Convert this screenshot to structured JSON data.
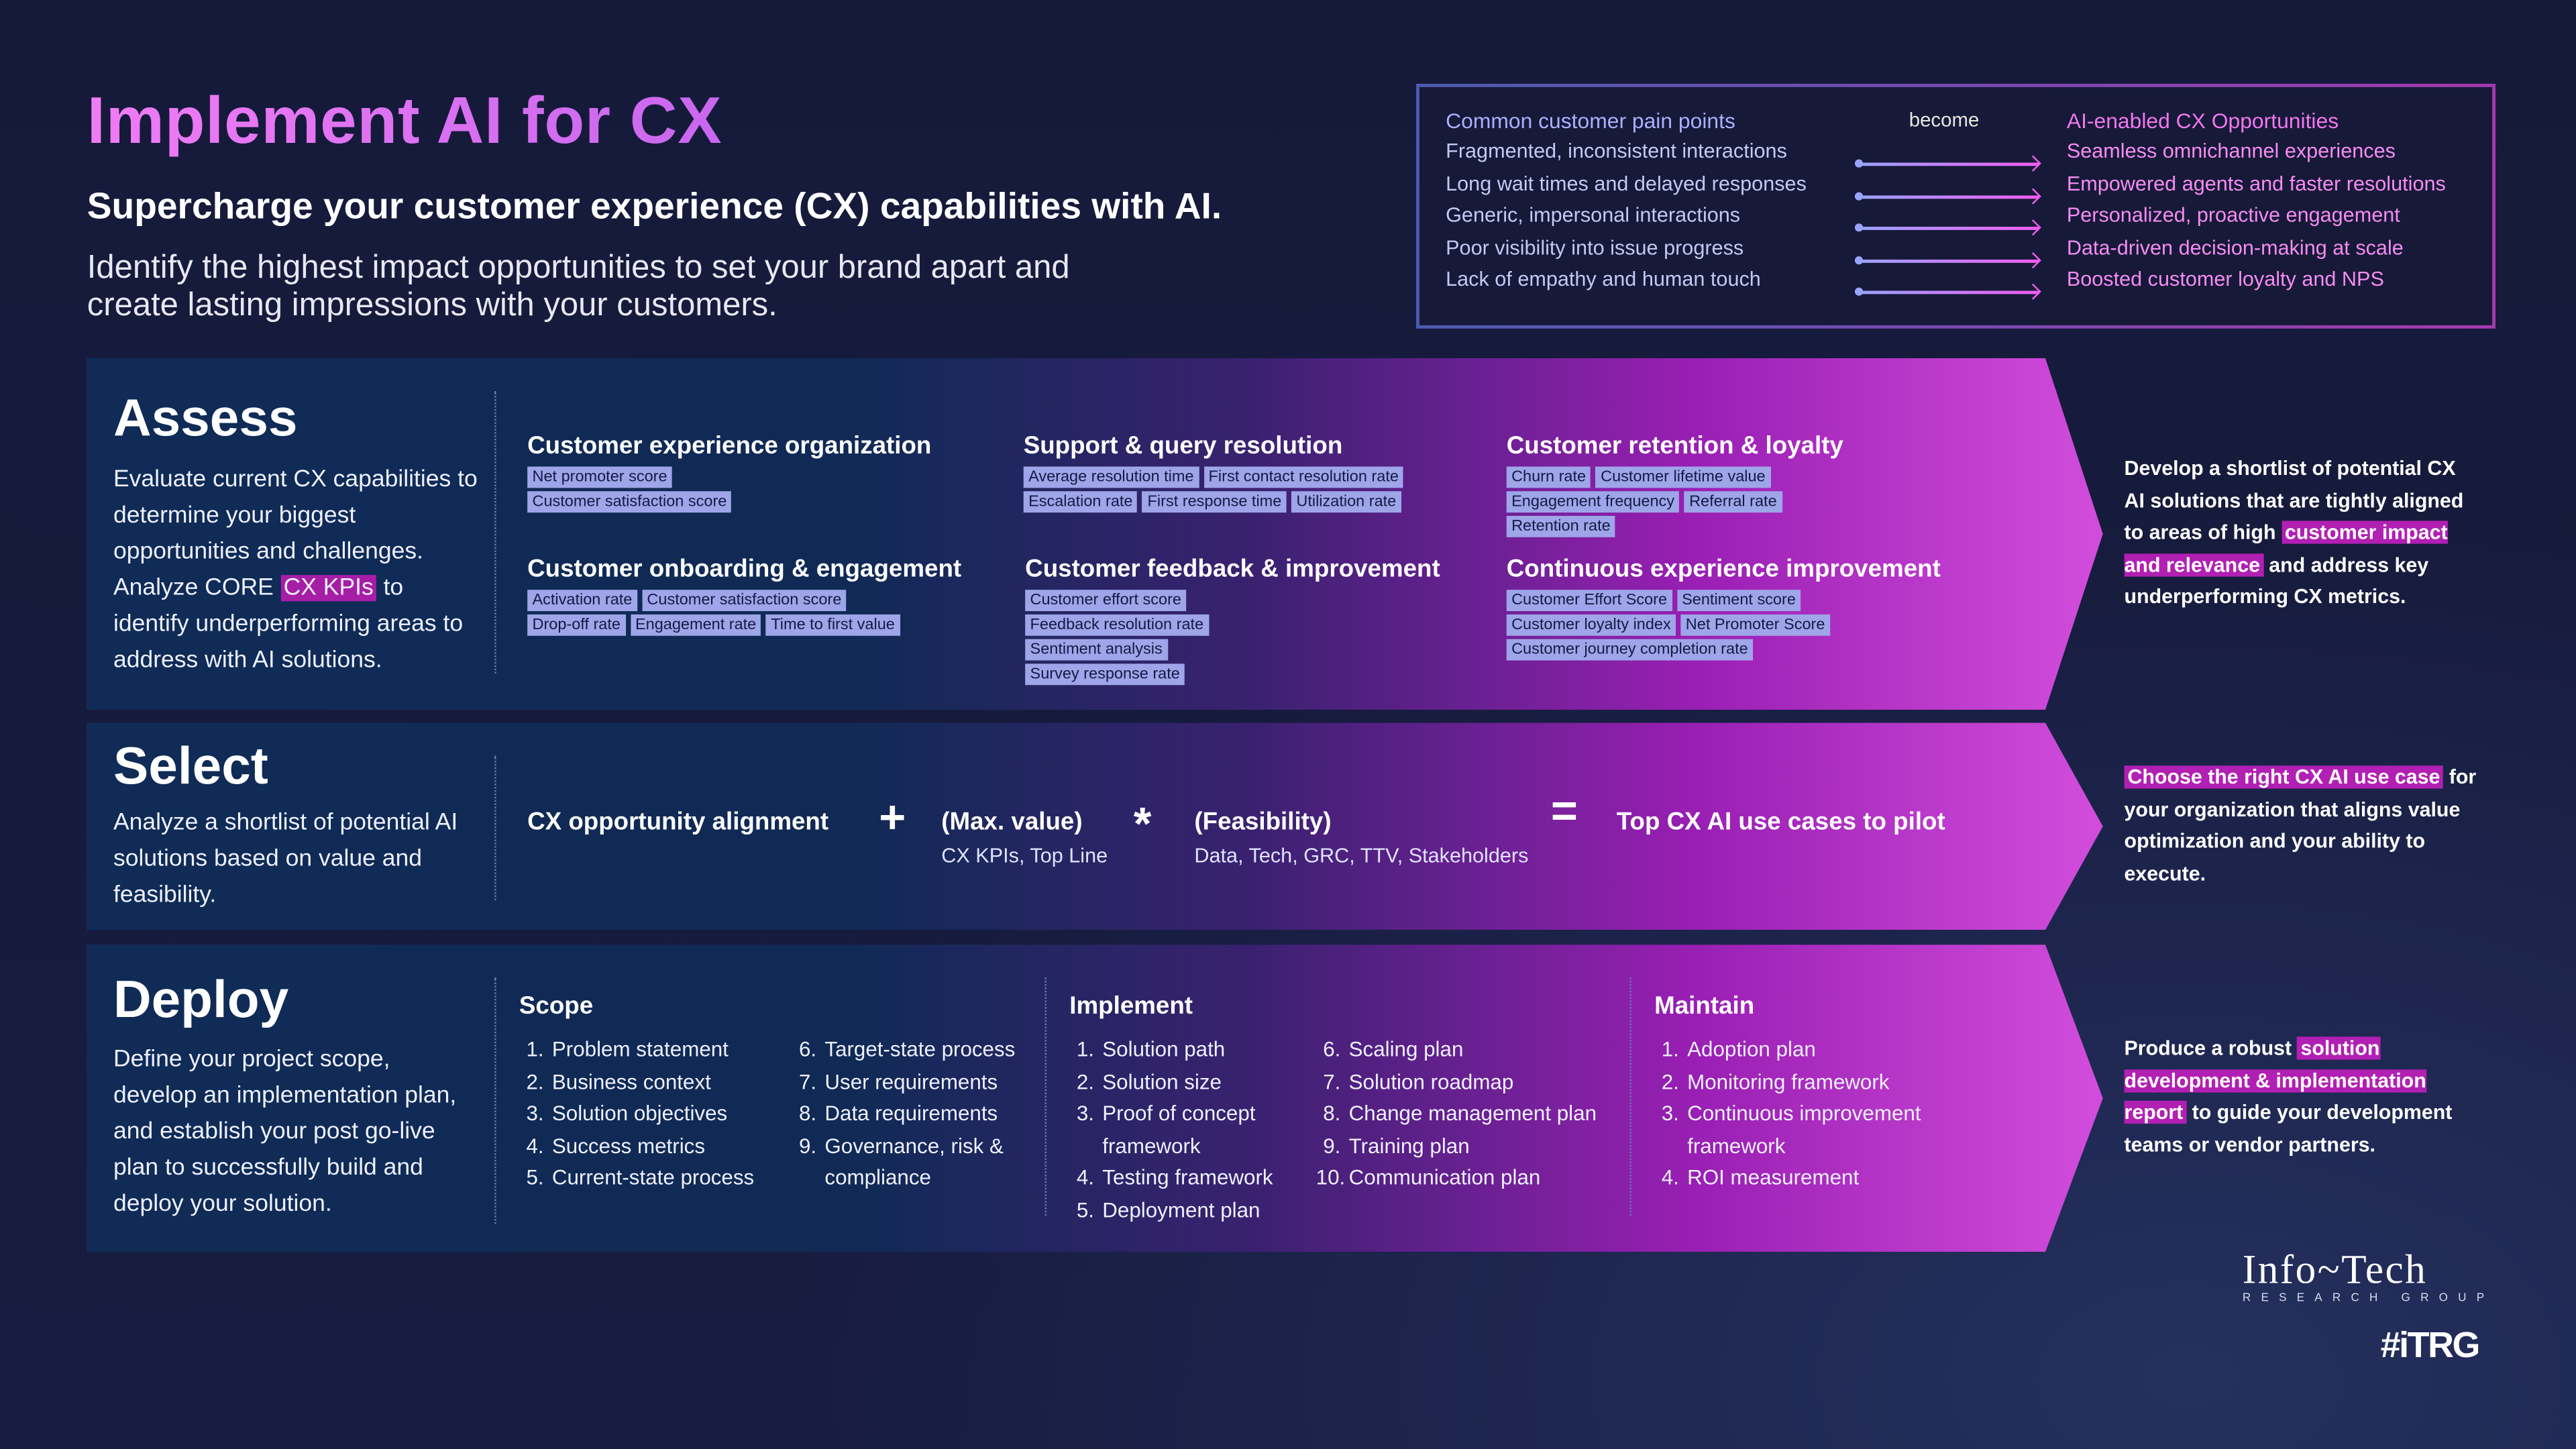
{
  "header": {
    "title": "Implement AI for CX",
    "subtitle": "Supercharge your customer experience (CX) capabilities with AI.",
    "intro": "Identify the highest impact opportunities to set your brand apart and create lasting impressions with your customers."
  },
  "pain_points": {
    "left_header": "Common customer pain points",
    "middle": "become",
    "right_header": "AI-enabled CX Opportunities",
    "rows": [
      {
        "from": "Fragmented, inconsistent interactions",
        "to": "Seamless omnichannel experiences"
      },
      {
        "from": "Long wait times and delayed responses",
        "to": "Empowered agents and faster resolutions"
      },
      {
        "from": "Generic, impersonal interactions",
        "to": "Personalized, proactive engagement"
      },
      {
        "from": "Poor visibility into issue progress",
        "to": "Data-driven decision-making at scale"
      },
      {
        "from": "Lack of empathy and human touch",
        "to": "Boosted customer loyalty and NPS"
      }
    ]
  },
  "assess": {
    "title": "Assess",
    "desc_a": "Evaluate current CX capabilities to determine your biggest opportunities and challenges. Analyze CORE ",
    "desc_hl": "CX KPIs",
    "desc_b": " to identify underperforming areas to address with AI solutions.",
    "groups": [
      {
        "title": "Customer experience organization",
        "chips": [
          "Net promoter score",
          "Customer satisfaction score"
        ]
      },
      {
        "title": "Support & query resolution",
        "chips": [
          "Average resolution time",
          "First contact resolution rate",
          "Escalation rate",
          "First response time",
          "Utilization rate"
        ]
      },
      {
        "title": "Customer retention & loyalty",
        "chips": [
          "Churn rate",
          "Customer lifetime value",
          "Engagement frequency",
          "Referral rate",
          "Retention rate"
        ]
      },
      {
        "title": "Customer onboarding & engagement",
        "chips": [
          "Activation rate",
          "Customer satisfaction score",
          "Drop-off rate",
          "Engagement rate",
          "Time to first value"
        ]
      },
      {
        "title": "Customer feedback & improvement",
        "chips": [
          "Customer effort score",
          "Feedback resolution rate",
          "Sentiment analysis",
          "Survey response rate"
        ]
      },
      {
        "title": "Continuous experience improvement",
        "chips": [
          "Customer Effort Score",
          "Sentiment score",
          "Customer loyalty index",
          "Net Promoter Score",
          "Customer journey completion rate"
        ]
      }
    ],
    "side": {
      "a": "Develop a shortlist of potential CX AI solutions that are tightly aligned to areas of high ",
      "hl": "customer impact and relevance",
      "b": " and address key underperforming CX metrics."
    }
  },
  "select": {
    "title": "Select",
    "desc": "Analyze a shortlist of potential AI solutions based on value and feasibility.",
    "alignment": "CX opportunity alignment",
    "plus": "+",
    "value": "(Max. value)",
    "value_sub": "CX KPIs, Top Line",
    "times": "*",
    "feasibility": "(Feasibility)",
    "feasibility_sub": "Data, Tech, GRC, TTV, Stakeholders",
    "equals": "=",
    "result": "Top CX AI use cases to pilot",
    "side": {
      "hl": "Choose the right CX AI use case",
      "b": " for your organization that aligns value optimization and your ability to execute."
    }
  },
  "deploy": {
    "title": "Deploy",
    "desc": "Define your project scope, develop an implementation plan, and establish your post go-live plan to successfully build and deploy your solution.",
    "scope": {
      "title": "Scope",
      "items": [
        "Problem statement",
        "Business context",
        "Solution objectives",
        "Success metrics",
        "Current-state process",
        "Target-state process",
        "User requirements",
        "Data requirements",
        "Governance, risk & compliance"
      ]
    },
    "implement": {
      "title": "Implement",
      "items": [
        "Solution path",
        "Solution size",
        "Proof of concept framework",
        "Testing framework",
        "Deployment plan",
        "Scaling plan",
        "Solution roadmap",
        "Change management plan",
        "Training plan",
        "Communication plan"
      ]
    },
    "maintain": {
      "title": "Maintain",
      "items": [
        "Adoption plan",
        "Monitoring framework",
        "Continuous improvement framework",
        "ROI measurement"
      ]
    },
    "side": {
      "a": "Produce a robust ",
      "hl": "solution development & implementation report",
      "b": " to guide your development teams or vendor partners."
    }
  },
  "branding": {
    "logo": "Info~Tech",
    "logo_sub": "RESEARCH GROUP",
    "tag": "#iTRG"
  },
  "colors": {
    "accent_pink": "#f07cf4",
    "chip": "#9ea5e8",
    "highlight": "#b11fb3",
    "navy": "#161a3b"
  }
}
